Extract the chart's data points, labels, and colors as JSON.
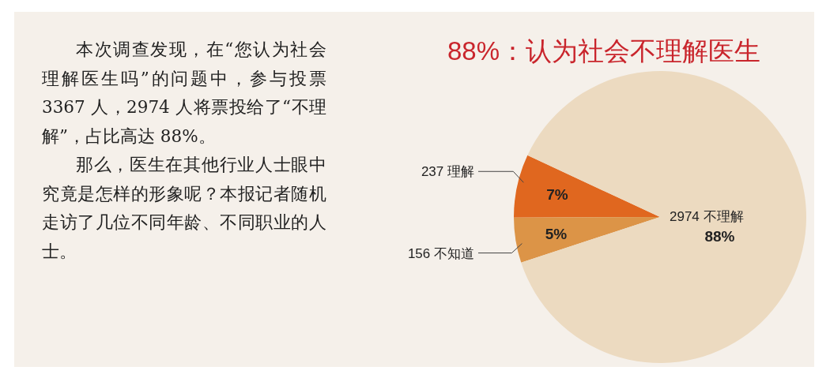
{
  "chart_data": {
    "type": "pie",
    "title": "88%：认为社会不理解医生",
    "categories": [
      "237 理解",
      "156  不知道",
      "2974 不理解"
    ],
    "values": [
      7,
      5,
      88
    ],
    "colors": [
      "#e0671f",
      "#dc9447",
      "#ecdac0"
    ],
    "value_labels": [
      "7%",
      "5%",
      "88%"
    ],
    "annotations": [
      "本次调查发现，在“您认为社会理解医生吗”的问题中，参与投票 3367 人，2974 人将票投给了“不理解”，占比高达 88%。",
      "那么，医生在其他行业人士眼中究竟是怎样的形象呢？本报记者随机走访了几位不同年龄、不同职业的人士。"
    ]
  }
}
